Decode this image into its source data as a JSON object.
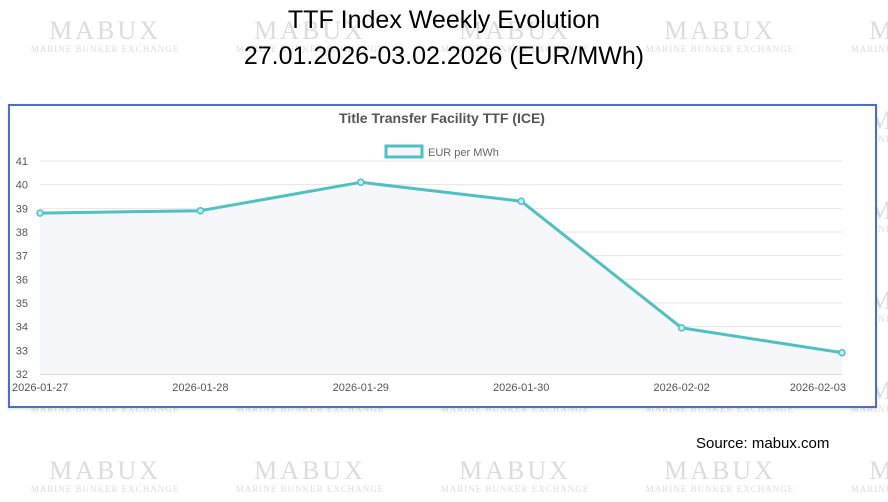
{
  "header": {
    "title_line1": "TTF Index Weekly Evolution",
    "title_line2": "27.01.2026-03.02.2026 (EUR/MWh)"
  },
  "watermark": {
    "brand": "MABUX",
    "tagline": "MARINE BUNKER EXCHANGE"
  },
  "chart_data": {
    "type": "line",
    "title": "Title Transfer Facility TTF (ICE)",
    "categories": [
      "2026-01-27",
      "2026-01-28",
      "2026-01-29",
      "2026-01-30",
      "2026-02-02",
      "2026-02-03"
    ],
    "series": [
      {
        "name": "EUR per MWh",
        "values": [
          38.8,
          38.9,
          40.1,
          39.3,
          33.95,
          32.9
        ]
      }
    ],
    "y_ticks": [
      32,
      33,
      34,
      35,
      36,
      37,
      38,
      39,
      40,
      41
    ],
    "ylim": [
      32,
      41
    ],
    "xlabel": "",
    "ylabel": "",
    "grid": true,
    "legend_position": "top-center",
    "line_color": "#4fc0c4",
    "fill_color": "#f6f7fb"
  },
  "footer": {
    "source": "Source: mabux.com"
  }
}
